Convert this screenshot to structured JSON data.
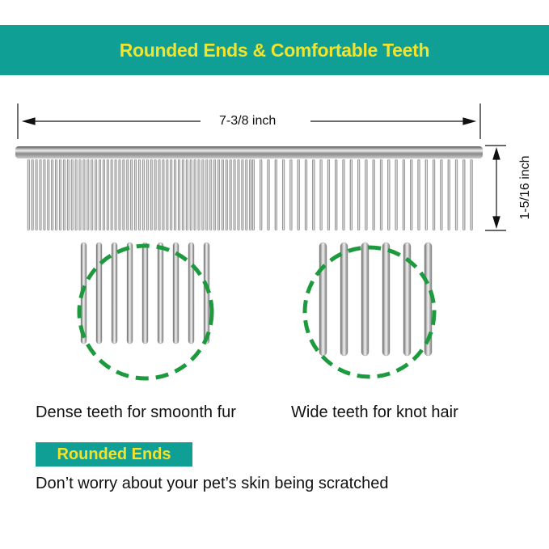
{
  "banner": {
    "title": "Rounded Ends & Comfortable Teeth"
  },
  "dimensions": {
    "length": "7-3/8 inch",
    "height": "1-5/16 inch"
  },
  "captions": {
    "dense": "Dense teeth for smoonth fur",
    "wide": "Wide teeth for knot hair"
  },
  "badge": {
    "label": "Rounded Ends"
  },
  "note": {
    "text": "Don’t worry about your pet’s skin being scratched"
  },
  "colors": {
    "teal": "#0f9f94",
    "yellow": "#f3e32c",
    "dashed_green": "#1e9a3e"
  }
}
